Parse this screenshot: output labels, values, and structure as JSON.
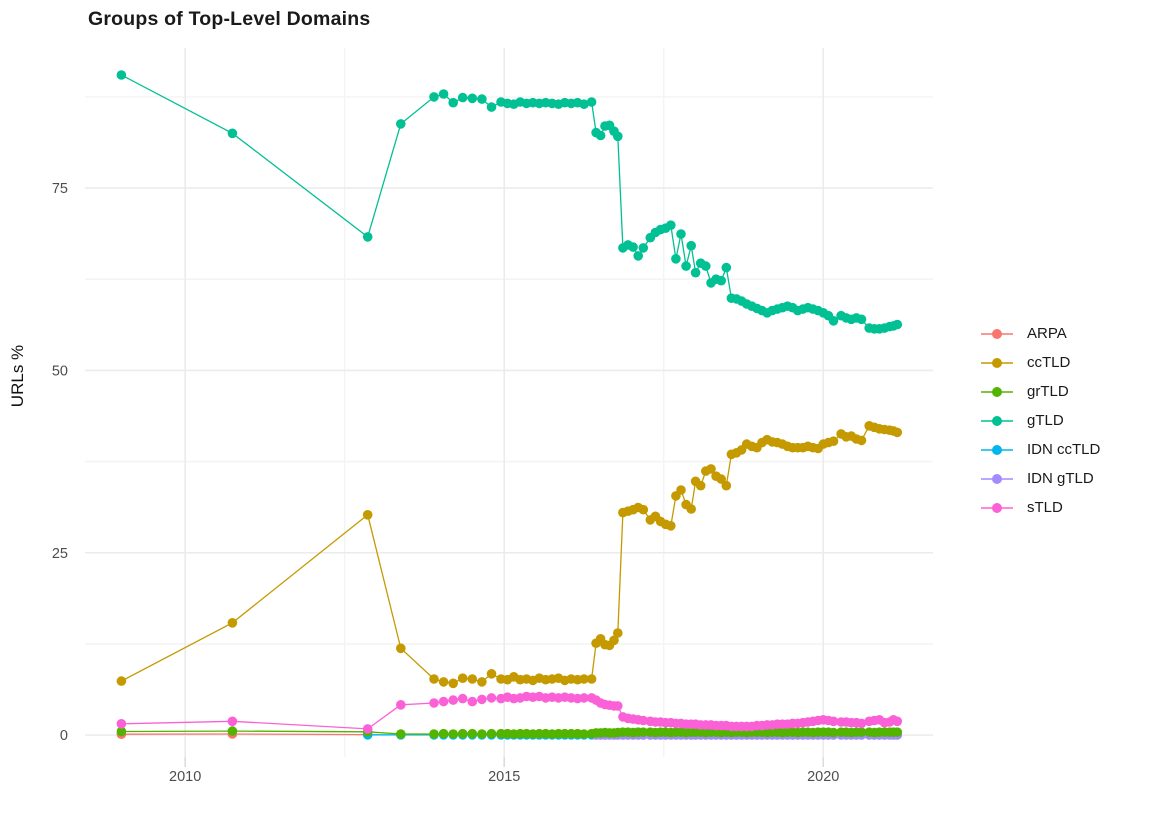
{
  "chart_data": {
    "type": "line",
    "title": "Groups of Top-Level Domains",
    "xlabel": "",
    "ylabel": "URLs %",
    "legend_position": "right",
    "grid": true,
    "xlim": [
      2008.43,
      2021.72
    ],
    "ylim": [
      -3.0,
      94.2
    ],
    "x_ticks": {
      "values": [
        2010,
        2015,
        2020
      ],
      "labels": [
        "2010",
        "2015",
        "2020"
      ]
    },
    "y_ticks": {
      "values": [
        0,
        25,
        50,
        75
      ],
      "labels": [
        "0",
        "25",
        "50",
        "75"
      ]
    },
    "x_minor": [
      2012.5,
      2017.5
    ],
    "y_minor": [
      12.5,
      37.5,
      62.5,
      87.5
    ],
    "colors": {
      "grid_major": "#ebebeb",
      "grid_minor": "#f4f4f4",
      "tick_mark": "#dcdcdc",
      "tick_label": "#4d4d4d",
      "title_text": "#1a1a1a"
    },
    "x_dense": [
      2013.9,
      2014.05,
      2014.2,
      2014.35,
      2014.5,
      2014.65,
      2014.8,
      2014.95,
      2015.05,
      2015.15,
      2015.25,
      2015.35,
      2015.45,
      2015.55,
      2015.65,
      2015.75,
      2015.85,
      2015.95,
      2016.05,
      2016.15,
      2016.25,
      2016.37,
      2016.44,
      2016.51,
      2016.58,
      2016.65,
      2016.72,
      2016.78,
      2016.86,
      2016.94,
      2017.02,
      2017.1,
      2017.18,
      2017.29,
      2017.37,
      2017.45,
      2017.53,
      2017.61,
      2017.69,
      2017.77,
      2017.85,
      2017.93,
      2018.0,
      2018.08,
      2018.16,
      2018.24,
      2018.32,
      2018.4,
      2018.48,
      2018.56,
      2018.64,
      2018.72,
      2018.8,
      2018.88,
      2018.96,
      2019.04,
      2019.12,
      2019.2,
      2019.28,
      2019.36,
      2019.44,
      2019.52,
      2019.6,
      2019.68,
      2019.76,
      2019.84,
      2019.92,
      2020.0,
      2020.08,
      2020.16,
      2020.28,
      2020.36,
      2020.44,
      2020.52,
      2020.6,
      2020.72,
      2020.8,
      2020.88,
      2020.96,
      2021.04,
      2021.1,
      2021.16
    ],
    "series": [
      {
        "name": "ARPA",
        "color": "#F8766D",
        "draw_order": 0,
        "early": [
          [
            2009.0,
            0.12
          ],
          [
            2010.74,
            0.15
          ],
          [
            2012.86,
            0.07
          ]
        ],
        "dense_start": null,
        "dense_values": []
      },
      {
        "name": "ccTLD",
        "color": "#C49A00",
        "draw_order": 3,
        "early": [
          [
            2009.0,
            7.4
          ],
          [
            2010.74,
            15.4
          ],
          [
            2012.86,
            30.2
          ],
          [
            2013.38,
            11.9
          ]
        ],
        "dense_start": 0,
        "dense_values": [
          7.7,
          7.3,
          7.1,
          7.8,
          7.7,
          7.3,
          8.4,
          7.7,
          7.6,
          8.0,
          7.6,
          7.7,
          7.5,
          7.8,
          7.6,
          7.7,
          7.8,
          7.5,
          7.7,
          7.6,
          7.7,
          7.7,
          12.6,
          13.2,
          12.4,
          12.3,
          13.0,
          14.0,
          30.5,
          30.7,
          30.9,
          31.2,
          30.9,
          29.5,
          30.0,
          29.3,
          28.9,
          28.7,
          32.8,
          33.6,
          31.6,
          31.0,
          34.8,
          34.2,
          36.2,
          36.5,
          35.5,
          35.1,
          34.2,
          38.5,
          38.7,
          39.1,
          39.9,
          39.6,
          39.4,
          40.1,
          40.5,
          40.2,
          40.1,
          39.9,
          39.6,
          39.4,
          39.4,
          39.4,
          39.6,
          39.4,
          39.3,
          39.9,
          40.1,
          40.3,
          41.3,
          40.9,
          41.0,
          40.6,
          40.4,
          42.4,
          42.2,
          42.0,
          41.9,
          41.8,
          41.7,
          41.5
        ]
      },
      {
        "name": "grTLD",
        "color": "#53B400",
        "draw_order": 5,
        "early": [
          [
            2009.0,
            0.5
          ],
          [
            2010.74,
            0.55
          ],
          [
            2012.86,
            0.45
          ],
          [
            2013.38,
            0.15
          ]
        ],
        "dense_start": 0,
        "dense_values": [
          0.15,
          0.2,
          0.15,
          0.2,
          0.2,
          0.15,
          0.2,
          0.2,
          0.2,
          0.15,
          0.2,
          0.2,
          0.15,
          0.2,
          0.2,
          0.15,
          0.2,
          0.2,
          0.2,
          0.2,
          0.15,
          0.2,
          0.3,
          0.3,
          0.35,
          0.3,
          0.3,
          0.35,
          0.4,
          0.4,
          0.35,
          0.4,
          0.4,
          0.4,
          0.35,
          0.4,
          0.4,
          0.35,
          0.4,
          0.4,
          0.35,
          0.4,
          0.4,
          0.4,
          0.35,
          0.4,
          0.4,
          0.35,
          0.4,
          0.35,
          0.4,
          0.4,
          0.35,
          0.4,
          0.4,
          0.4,
          0.35,
          0.4,
          0.4,
          0.35,
          0.4,
          0.4,
          0.35,
          0.4,
          0.4,
          0.35,
          0.4,
          0.4,
          0.4,
          0.35,
          0.4,
          0.4,
          0.35,
          0.4,
          0.4,
          0.4,
          0.35,
          0.4,
          0.4,
          0.4,
          0.4,
          0.4
        ]
      },
      {
        "name": "gTLD",
        "color": "#00C094",
        "draw_order": 4,
        "early": [
          [
            2009.0,
            90.5
          ],
          [
            2010.74,
            82.5
          ],
          [
            2012.86,
            68.3
          ],
          [
            2013.38,
            83.8
          ]
        ],
        "dense_start": 0,
        "dense_values": [
          87.5,
          87.9,
          86.7,
          87.4,
          87.3,
          87.2,
          86.1,
          86.8,
          86.6,
          86.5,
          86.8,
          86.6,
          86.7,
          86.6,
          86.7,
          86.6,
          86.5,
          86.7,
          86.6,
          86.7,
          86.5,
          86.8,
          82.6,
          82.2,
          83.5,
          83.6,
          82.8,
          82.1,
          66.8,
          67.2,
          66.9,
          65.7,
          66.8,
          68.2,
          68.9,
          69.3,
          69.5,
          69.9,
          65.3,
          68.7,
          64.3,
          67.1,
          63.4,
          64.7,
          64.3,
          62.0,
          62.5,
          62.3,
          64.1,
          59.9,
          59.8,
          59.5,
          59.1,
          58.8,
          58.5,
          58.2,
          57.9,
          58.2,
          58.4,
          58.6,
          58.8,
          58.6,
          58.2,
          58.4,
          58.6,
          58.4,
          58.2,
          57.9,
          57.5,
          56.8,
          57.5,
          57.2,
          57.0,
          57.2,
          57.0,
          55.8,
          55.7,
          55.7,
          55.8,
          56.0,
          56.1,
          56.3
        ]
      },
      {
        "name": "IDN ccTLD",
        "color": "#00B6EB",
        "draw_order": 1,
        "early": [
          [
            2012.86,
            0.05
          ],
          [
            2013.38,
            0.05
          ]
        ],
        "dense_start": 0,
        "dense_values": [
          0.05,
          0.05,
          0.05,
          0.05,
          0.05,
          0.05,
          0.05,
          0.05,
          0.05,
          0.05,
          0.05,
          0.05,
          0.05,
          0.05,
          0.05,
          0.05,
          0.05,
          0.05,
          0.05,
          0.05,
          0.05,
          0.05,
          0.05,
          0.05,
          0.05,
          0.05,
          0.05,
          0.05,
          0.05,
          0.05,
          0.05,
          0.05,
          0.05,
          0.05,
          0.05,
          0.05,
          0.05,
          0.05,
          0.05,
          0.05,
          0.05,
          0.05,
          0.05,
          0.05,
          0.05,
          0.05,
          0.05,
          0.05,
          0.05,
          0.05,
          0.05,
          0.05,
          0.05,
          0.05,
          0.05,
          0.05,
          0.05,
          0.05,
          0.05,
          0.05,
          0.05,
          0.05,
          0.05,
          0.05,
          0.05,
          0.05,
          0.05,
          0.05,
          0.05,
          0.05,
          0.05,
          0.05,
          0.05,
          0.05,
          0.05,
          0.05,
          0.05,
          0.05,
          0.05,
          0.05,
          0.05,
          0.05
        ]
      },
      {
        "name": "IDN gTLD",
        "color": "#A58AFF",
        "draw_order": 2,
        "early": [],
        "dense_start": 22,
        "dense_values": [
          0.02,
          0.02,
          0.02,
          0.02,
          0.02,
          0.02,
          0.02,
          0.02,
          0.02,
          0.02,
          0.02,
          0.02,
          0.02,
          0.02,
          0.02,
          0.02,
          0.02,
          0.02,
          0.02,
          0.02,
          0.02,
          0.02,
          0.02,
          0.02,
          0.02,
          0.02,
          0.02,
          0.02,
          0.02,
          0.02,
          0.02,
          0.02,
          0.02,
          0.02,
          0.02,
          0.02,
          0.02,
          0.02,
          0.02,
          0.02,
          0.02,
          0.02,
          0.02,
          0.02,
          0.02,
          0.02,
          0.02,
          0.02,
          0.02,
          0.02,
          0.02,
          0.02,
          0.02,
          0.02,
          0.02,
          0.02,
          0.02,
          0.02,
          0.02,
          0.02
        ]
      },
      {
        "name": "sTLD",
        "color": "#FB61D7",
        "draw_order": 6,
        "early": [
          [
            2009.0,
            1.55
          ],
          [
            2010.74,
            1.9
          ],
          [
            2012.86,
            0.85
          ],
          [
            2013.38,
            4.15
          ]
        ],
        "dense_start": 0,
        "dense_values": [
          4.4,
          4.6,
          4.8,
          5.0,
          4.6,
          4.9,
          5.1,
          5.0,
          5.2,
          5.0,
          5.1,
          5.3,
          5.2,
          5.3,
          5.1,
          5.2,
          5.1,
          5.2,
          5.1,
          5.0,
          5.1,
          5.1,
          4.8,
          4.4,
          4.2,
          4.1,
          4.0,
          4.0,
          2.5,
          2.3,
          2.2,
          2.1,
          2.0,
          1.9,
          1.8,
          1.8,
          1.7,
          1.7,
          1.6,
          1.6,
          1.5,
          1.5,
          1.5,
          1.4,
          1.4,
          1.4,
          1.3,
          1.3,
          1.3,
          1.2,
          1.2,
          1.2,
          1.2,
          1.2,
          1.3,
          1.3,
          1.4,
          1.4,
          1.5,
          1.5,
          1.5,
          1.6,
          1.6,
          1.7,
          1.8,
          1.9,
          2.0,
          2.1,
          2.0,
          1.9,
          1.8,
          1.8,
          1.7,
          1.7,
          1.6,
          1.9,
          2.0,
          2.1,
          1.7,
          1.8,
          2.1,
          1.9
        ]
      }
    ]
  }
}
